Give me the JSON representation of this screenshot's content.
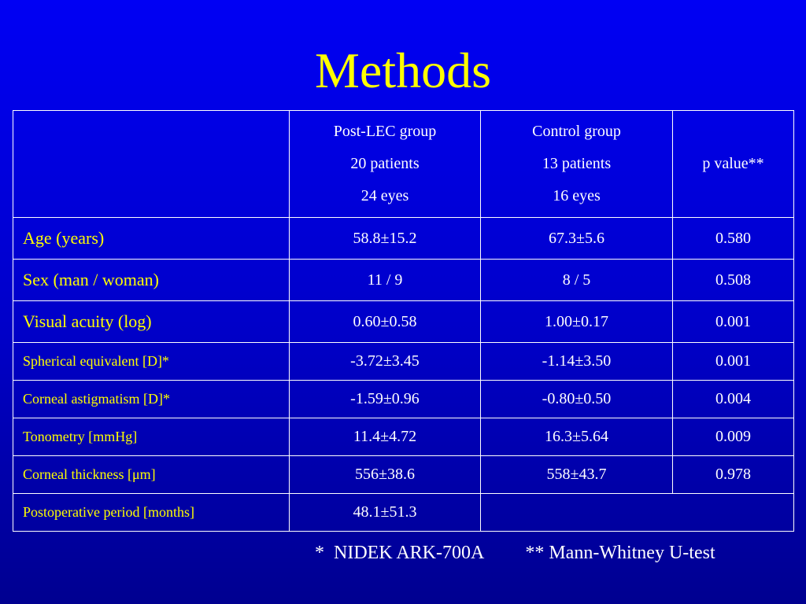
{
  "title": "Methods",
  "table": {
    "header": {
      "col1": [
        "Post-LEC group",
        "20 patients",
        "24 eyes"
      ],
      "col2": [
        "Control group",
        "13 patients",
        "16 eyes"
      ],
      "col3": "p value**"
    },
    "rows": [
      {
        "label": "Age (years)",
        "post": "58.8±15.2",
        "control": "67.3±5.6",
        "p": "0.580"
      },
      {
        "label": "Sex (man / woman)",
        "post": "11 / 9",
        "control": "8 / 5",
        "p": "0.508"
      },
      {
        "label": "Visual acuity (log)",
        "post": "0.60±0.58",
        "control": "1.00±0.17",
        "p": "0.001"
      },
      {
        "label": "Spherical equivalent [D]*",
        "post": "-3.72±3.45",
        "control": "-1.14±3.50",
        "p": "0.001"
      },
      {
        "label": "Corneal astigmatism [D]*",
        "post": "-1.59±0.96",
        "control": "-0.80±0.50",
        "p": "0.004"
      },
      {
        "label": "Tonometry [mmHg]",
        "post": "11.4±4.72",
        "control": "16.3±5.64",
        "p": "0.009"
      },
      {
        "label": "Corneal thickness [μm]",
        "post": "556±38.6",
        "control": "558±43.7",
        "p": "0.978"
      },
      {
        "label": "Postoperative period [months]",
        "post": "48.1±51.3"
      }
    ]
  },
  "footnotes": {
    "first": "*  NIDEK ARK-700A",
    "second": "** Mann-Whitney U-test"
  },
  "colors": {
    "background_top": "#0000f4",
    "background_bottom": "#000090",
    "title": "#ffff00",
    "row_labels": "#ffff00",
    "values": "#ffffff",
    "grid": "#ffffff"
  }
}
